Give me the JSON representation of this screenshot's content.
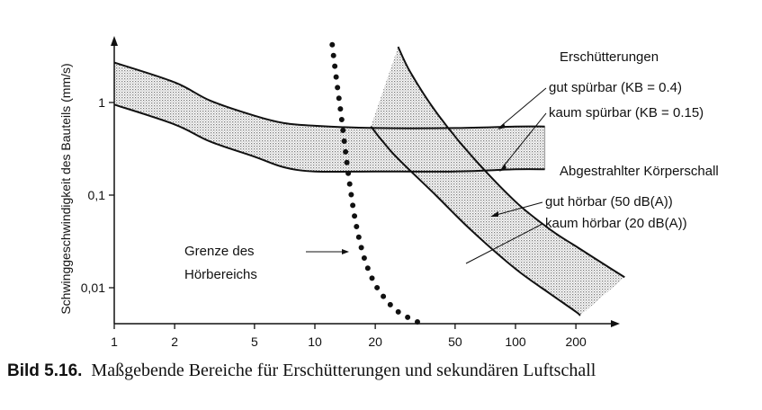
{
  "chart_data": {
    "type": "line",
    "x_scale": "log",
    "y_scale": "log",
    "xlim": [
      1,
      400
    ],
    "ylim": [
      0.003,
      6
    ],
    "ylabel": "Schwinggeschwindigkeit des Bauteils (mm/s)",
    "xlabel": "",
    "x_ticks": [
      {
        "value": 1,
        "label": "1"
      },
      {
        "value": 2,
        "label": "2"
      },
      {
        "value": 5,
        "label": "5"
      },
      {
        "value": 10,
        "label": "10"
      },
      {
        "value": 20,
        "label": "20"
      },
      {
        "value": 50,
        "label": "50"
      },
      {
        "value": 100,
        "label": "100"
      },
      {
        "value": 200,
        "label": "200"
      }
    ],
    "y_ticks": [
      {
        "value": 1,
        "label": "1"
      },
      {
        "value": 0.1,
        "label": "0,1"
      },
      {
        "value": 0.01,
        "label": "0,01"
      }
    ],
    "grid": false,
    "vibration": {
      "title": "Erschütterungen",
      "upper": {
        "label": "gut spürbar (KB = 0.4)",
        "x": [
          1,
          2,
          3,
          5,
          7,
          10,
          20,
          50,
          100,
          140
        ],
        "y": [
          2.7,
          1.65,
          1.05,
          0.72,
          0.6,
          0.56,
          0.53,
          0.53,
          0.55,
          0.55
        ]
      },
      "lower": {
        "label": "kaum spürbar (KB = 0.15)",
        "x": [
          1,
          2,
          3,
          5,
          7,
          10,
          20,
          50,
          100,
          140
        ],
        "y": [
          0.95,
          0.58,
          0.38,
          0.26,
          0.2,
          0.18,
          0.18,
          0.18,
          0.19,
          0.19
        ]
      }
    },
    "structure_borne_sound": {
      "title": "Abgestrahlter Körperschall",
      "upper": {
        "label": "gut hörbar (50 dB(A))",
        "x": [
          26,
          30,
          40,
          60,
          100,
          150,
          200,
          300,
          350
        ],
        "y": [
          4.0,
          2.1,
          0.8,
          0.27,
          0.085,
          0.042,
          0.028,
          0.016,
          0.013
        ]
      },
      "lower": {
        "label": "kaum hörbar (20 dB(A))",
        "x": [
          19,
          25,
          40,
          60,
          100,
          150,
          200,
          210
        ],
        "y": [
          0.55,
          0.27,
          0.1,
          0.042,
          0.016,
          0.0085,
          0.0055,
          0.005
        ]
      }
    },
    "hearing_limit": {
      "label": "Grenze des Hörbereichs",
      "x": [
        12.2,
        12.8,
        13.5,
        14.2,
        15,
        16,
        17.5,
        19.5,
        22,
        26,
        33
      ],
      "y": [
        4.2,
        1.8,
        0.75,
        0.3,
        0.12,
        0.05,
        0.022,
        0.012,
        0.008,
        0.0055,
        0.0042
      ]
    }
  },
  "caption": {
    "number": "Bild 5.16.",
    "text": "Maßgebende Bereiche für Erschütterungen und sekundären Luftschall"
  }
}
